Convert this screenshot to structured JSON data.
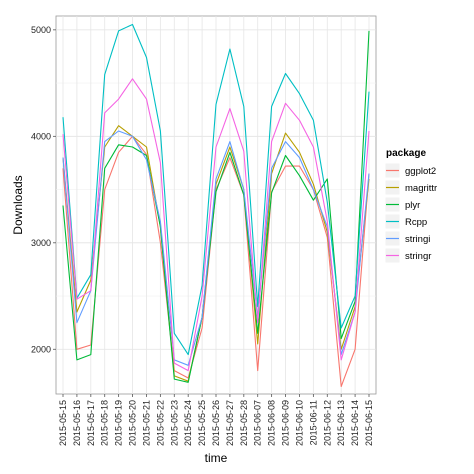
{
  "chart_data": {
    "type": "line",
    "xlabel": "time",
    "ylabel": "Downloads",
    "ylim": [
      1580,
      5130
    ],
    "y_ticks": [
      2000,
      3000,
      4000,
      5000
    ],
    "grid": true,
    "legend_title": "package",
    "legend_position": "right",
    "x": [
      "2015-05-15",
      "2015-05-16",
      "2015-05-17",
      "2015-05-18",
      "2015-05-19",
      "2015-05-20",
      "2015-05-21",
      "2015-05-22",
      "2015-05-23",
      "2015-05-24",
      "2015-05-25",
      "2015-05-26",
      "2015-05-27",
      "2015-05-28",
      "2015-06-07",
      "2015-06-08",
      "2015-06-09",
      "2015-06-10",
      "2015-06-11",
      "2015-06-12",
      "2015-06-13",
      "2015-06-14",
      "2015-06-15"
    ],
    "series": [
      {
        "name": "ggplot2",
        "color": "#F8766D",
        "values": [
          3700,
          2000,
          2040,
          3500,
          3850,
          4000,
          3830,
          3000,
          1800,
          1730,
          2200,
          3500,
          3800,
          3450,
          1800,
          3480,
          3720,
          3720,
          3500,
          3050,
          1650,
          2000,
          3650
        ]
      },
      {
        "name": "magrittr",
        "color": "#B79F00",
        "values": [
          3800,
          2350,
          2650,
          3900,
          4100,
          4000,
          3900,
          3150,
          1750,
          1700,
          2300,
          3550,
          3900,
          3500,
          2050,
          3650,
          4030,
          3850,
          3550,
          3100,
          2000,
          2400,
          3600
        ]
      },
      {
        "name": "plyr",
        "color": "#00BA38",
        "values": [
          3350,
          1900,
          1950,
          3700,
          3920,
          3900,
          3820,
          3150,
          1720,
          1690,
          2300,
          3480,
          3850,
          3450,
          2150,
          3470,
          3820,
          3630,
          3400,
          3600,
          2100,
          2450,
          4990
        ]
      },
      {
        "name": "Rcpp",
        "color": "#00BFC4",
        "values": [
          4180,
          2480,
          2700,
          4580,
          4990,
          5050,
          4740,
          4050,
          2150,
          1950,
          2600,
          4300,
          4820,
          4280,
          2400,
          4280,
          4590,
          4400,
          4150,
          3380,
          2200,
          2500,
          4420
        ]
      },
      {
        "name": "stringi",
        "color": "#619CFF",
        "values": [
          3800,
          2250,
          2550,
          3950,
          4050,
          4000,
          3780,
          3200,
          1900,
          1850,
          2300,
          3600,
          3950,
          3500,
          2300,
          3700,
          3950,
          3800,
          3500,
          3150,
          1950,
          2350,
          3650
        ]
      },
      {
        "name": "stringr",
        "color": "#F564E3",
        "values": [
          4020,
          2470,
          2550,
          4220,
          4350,
          4540,
          4350,
          3750,
          1870,
          1800,
          2500,
          3900,
          4260,
          3860,
          2250,
          3950,
          4310,
          4150,
          3900,
          3200,
          1900,
          2350,
          4050
        ]
      }
    ]
  }
}
